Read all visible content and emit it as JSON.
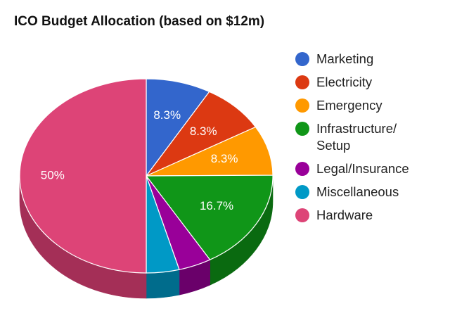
{
  "chart_data": {
    "type": "pie",
    "title": "ICO Budget Allocation (based on $12m)",
    "slices": [
      {
        "name": "Marketing",
        "value": 8.3,
        "label": "8.3%",
        "color": "#3366cc",
        "side": "#1f4693"
      },
      {
        "name": "Electricity",
        "value": 8.3,
        "label": "8.3%",
        "color": "#dc3912",
        "side": "#9c2409"
      },
      {
        "name": "Emergency",
        "value": 8.3,
        "label": "8.3%",
        "color": "#ff9900",
        "side": "#b86d00"
      },
      {
        "name": "Infrastructure/\nSetup",
        "value": 16.7,
        "label": "16.7%",
        "color": "#109618",
        "side": "#0a6a10"
      },
      {
        "name": "Legal/Insurance",
        "value": 4.2,
        "label": "",
        "color": "#990099",
        "side": "#6a006a"
      },
      {
        "name": "Miscellaneous",
        "value": 4.2,
        "label": "",
        "color": "#0099c6",
        "side": "#006c8c"
      },
      {
        "name": "Hardware",
        "value": 50,
        "label": "50%",
        "color": "#dd4477",
        "side": "#a42f57"
      }
    ],
    "legend": "right",
    "style": "3d"
  }
}
